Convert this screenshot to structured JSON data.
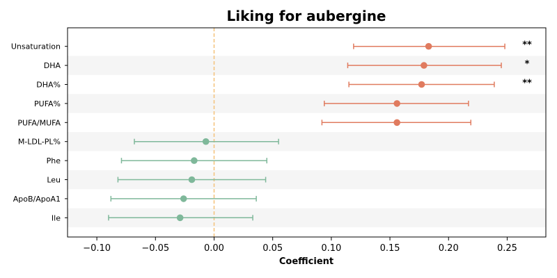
{
  "chart_data": {
    "type": "forest",
    "title": "Liking for aubergine",
    "xlabel": "Coefficient",
    "xlim": [
      -0.125,
      0.283
    ],
    "xticks": [
      -0.1,
      -0.05,
      0.0,
      0.05,
      0.1,
      0.15,
      0.2,
      0.25
    ],
    "xtick_labels": [
      "−0.10",
      "−0.05",
      "0.00",
      "0.05",
      "0.10",
      "0.15",
      "0.20",
      "0.25"
    ],
    "reference_line": 0.0,
    "colors": {
      "positive": "#e07b5f",
      "negative": "#7fb89a",
      "reference": "#f5c27a",
      "band": "#f5f5f5"
    },
    "rows": [
      {
        "label": "Unsaturation",
        "estimate": 0.183,
        "ci_low": 0.119,
        "ci_high": 0.248,
        "significance": "**"
      },
      {
        "label": "DHA",
        "estimate": 0.179,
        "ci_low": 0.114,
        "ci_high": 0.245,
        "significance": "*"
      },
      {
        "label": "DHA%",
        "estimate": 0.177,
        "ci_low": 0.115,
        "ci_high": 0.239,
        "significance": "**"
      },
      {
        "label": "PUFA%",
        "estimate": 0.156,
        "ci_low": 0.094,
        "ci_high": 0.217,
        "significance": ""
      },
      {
        "label": "PUFA/MUFA",
        "estimate": 0.156,
        "ci_low": 0.092,
        "ci_high": 0.219,
        "significance": ""
      },
      {
        "label": "M-LDL-PL%",
        "estimate": -0.007,
        "ci_low": -0.068,
        "ci_high": 0.055,
        "significance": ""
      },
      {
        "label": "Phe",
        "estimate": -0.017,
        "ci_low": -0.079,
        "ci_high": 0.045,
        "significance": ""
      },
      {
        "label": "Leu",
        "estimate": -0.019,
        "ci_low": -0.082,
        "ci_high": 0.044,
        "significance": ""
      },
      {
        "label": "ApoB/ApoA1",
        "estimate": -0.026,
        "ci_low": -0.088,
        "ci_high": 0.036,
        "significance": ""
      },
      {
        "label": "Ile",
        "estimate": -0.029,
        "ci_low": -0.09,
        "ci_high": 0.033,
        "significance": ""
      }
    ]
  }
}
